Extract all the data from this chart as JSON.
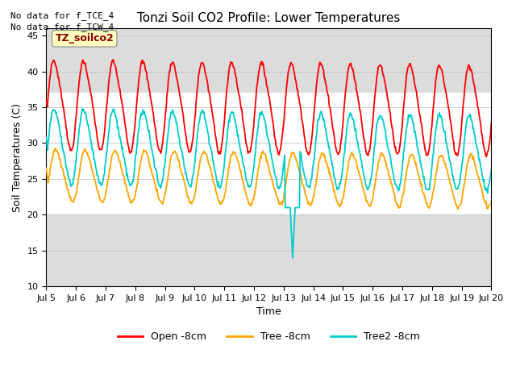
{
  "title": "Tonzi Soil CO2 Profile: Lower Temperatures",
  "ylabel": "Soil Temperatures (C)",
  "xlabel": "Time",
  "no_data_text": [
    "No data for f_TCE_4",
    "No data for f_TCW_4"
  ],
  "legend_label": "TZ_soilco2",
  "yticks": [
    10,
    15,
    20,
    25,
    30,
    35,
    40,
    45
  ],
  "ylim": [
    10,
    46
  ],
  "xtick_labels": [
    "Jul 5",
    "Jul 6",
    "Jul 7",
    "Jul 8",
    "Jul 9",
    "Jul 10",
    "Jul 11",
    "Jul 12",
    "Jul 13",
    "Jul 14",
    "Jul 15",
    "Jul 16",
    "Jul 17",
    "Jul 18",
    "Jul 19",
    "Jul 20"
  ],
  "white_band": [
    20,
    37
  ],
  "grey_color": "#DCDCDC",
  "white_color": "#FFFFFF",
  "line_colors": {
    "open": "#FF0000",
    "tree": "#FFA500",
    "tree2": "#00CCCC"
  },
  "line_widths": {
    "open": 1.3,
    "tree": 1.3,
    "tree2": 1.3
  },
  "legend_entries": [
    "Open -8cm",
    "Tree -8cm",
    "Tree2 -8cm"
  ],
  "legend_colors": [
    "#FF0000",
    "#FFA500",
    "#00CCCC"
  ],
  "background_color": "#FFFFFF",
  "plot_bg_color": "#DCDCDC",
  "no_data_fontsize": 8,
  "title_fontsize": 11,
  "label_fontsize": 9,
  "tick_fontsize": 8
}
